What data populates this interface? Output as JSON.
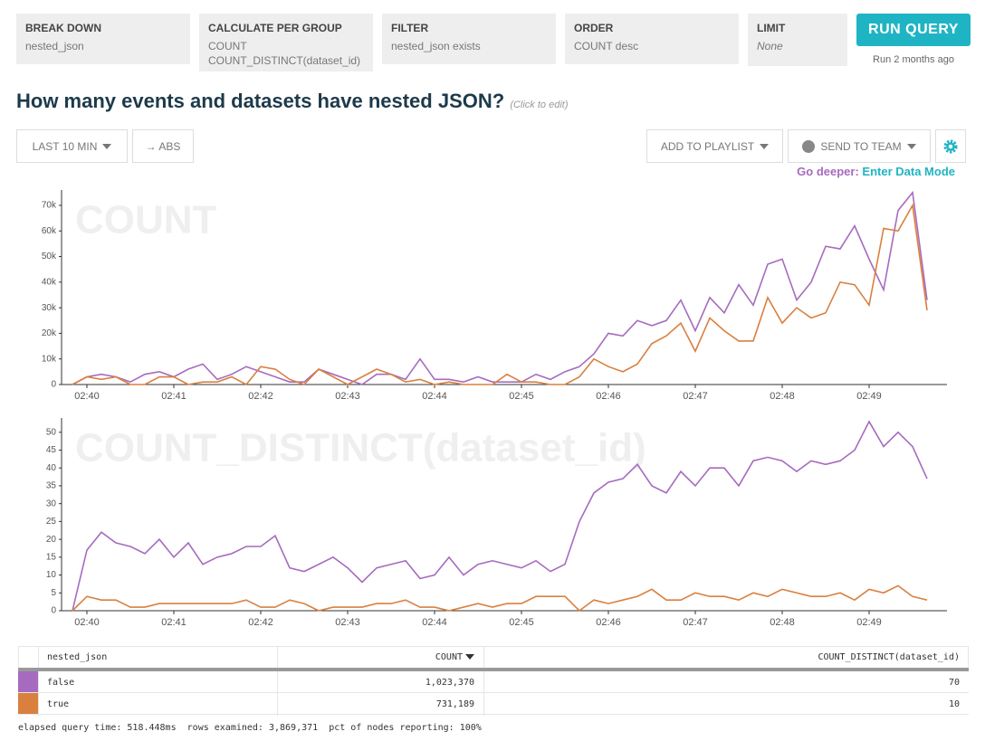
{
  "query": {
    "break_down": {
      "label": "BREAK DOWN",
      "value": "nested_json"
    },
    "calculate": {
      "label": "CALCULATE PER GROUP",
      "values": [
        "COUNT",
        "COUNT_DISTINCT(dataset_id)"
      ]
    },
    "filter": {
      "label": "FILTER",
      "value": "nested_json exists"
    },
    "order": {
      "label": "ORDER",
      "value": "COUNT desc"
    },
    "limit": {
      "label": "LIMIT",
      "value": "None"
    }
  },
  "run": {
    "button": "RUN QUERY",
    "status": "Run 2 months ago"
  },
  "header": {
    "title": "How many events and datasets have nested JSON?",
    "hint": "(Click to edit)"
  },
  "toolbar": {
    "time_range": "LAST 10 MIN",
    "mode": "→ ABS",
    "playlist": "ADD TO PLAYLIST",
    "send": "SEND TO TEAM"
  },
  "go_deeper": {
    "prefix": "Go deeper:",
    "link": "Enter Data Mode"
  },
  "chart_data": [
    {
      "type": "line",
      "title": "COUNT",
      "categories": [
        null,
        "02:40",
        null,
        null,
        null,
        null,
        null,
        "02:41",
        null,
        null,
        null,
        null,
        null,
        "02:42",
        null,
        null,
        null,
        null,
        null,
        "02:43",
        null,
        null,
        null,
        null,
        null,
        "02:44",
        null,
        null,
        null,
        null,
        null,
        "02:45",
        null,
        null,
        null,
        null,
        null,
        "02:46",
        null,
        null,
        null,
        null,
        null,
        "02:47",
        null,
        null,
        null,
        null,
        null,
        "02:48",
        null,
        null,
        null,
        null,
        null,
        "02:49",
        null,
        null,
        null,
        null
      ],
      "series": [
        {
          "color": "#a66bbe",
          "values": [
            0,
            3000,
            4000,
            3000,
            1000,
            4000,
            5000,
            3000,
            6000,
            8000,
            2000,
            4000,
            7000,
            5000,
            3000,
            1000,
            1000,
            6000,
            4000,
            2000,
            0,
            4000,
            4000,
            2000,
            10000,
            2000,
            2000,
            1000,
            3000,
            1000,
            1000,
            1000,
            4000,
            2000,
            5000,
            7000,
            12000,
            20000,
            19000,
            25000,
            23000,
            25000,
            33000,
            21000,
            34000,
            28000,
            39000,
            31000,
            47000,
            49000,
            33000,
            40000,
            54000,
            53000,
            62000,
            49000,
            37000,
            68000,
            75000,
            33000
          ]
        },
        {
          "color": "#d9803f",
          "values": [
            0,
            3000,
            2000,
            3000,
            0,
            0,
            3000,
            3000,
            0,
            1000,
            1000,
            3000,
            0,
            7000,
            6000,
            2000,
            0,
            6000,
            3000,
            0,
            3000,
            6000,
            4000,
            1000,
            2000,
            0,
            1000,
            0,
            0,
            0,
            4000,
            1000,
            1000,
            0,
            0,
            3000,
            10000,
            7000,
            5000,
            8000,
            16000,
            19000,
            24000,
            13000,
            26000,
            21000,
            17000,
            17000,
            34000,
            24000,
            30000,
            26000,
            28000,
            40000,
            39000,
            31000,
            61000,
            60000,
            70000,
            29000
          ]
        }
      ],
      "ylim": [
        0,
        76000
      ],
      "yticks": [
        0,
        {
          "value": 10000,
          "label": "10k"
        },
        {
          "value": 20000,
          "label": "20k"
        },
        {
          "value": 30000,
          "label": "30k"
        },
        {
          "value": 40000,
          "label": "40k"
        },
        {
          "value": 50000,
          "label": "50k"
        },
        {
          "value": 60000,
          "label": "60k"
        },
        {
          "value": 70000,
          "label": "70k"
        }
      ]
    },
    {
      "type": "line",
      "title": "COUNT_DISTINCT(dataset_id)",
      "categories": [
        null,
        "02:40",
        null,
        null,
        null,
        null,
        null,
        "02:41",
        null,
        null,
        null,
        null,
        null,
        "02:42",
        null,
        null,
        null,
        null,
        null,
        "02:43",
        null,
        null,
        null,
        null,
        null,
        "02:44",
        null,
        null,
        null,
        null,
        null,
        "02:45",
        null,
        null,
        null,
        null,
        null,
        "02:46",
        null,
        null,
        null,
        null,
        null,
        "02:47",
        null,
        null,
        null,
        null,
        null,
        "02:48",
        null,
        null,
        null,
        null,
        null,
        "02:49",
        null,
        null,
        null,
        null
      ],
      "series": [
        {
          "color": "#a66bbe",
          "values": [
            0,
            17,
            22,
            19,
            18,
            16,
            20,
            15,
            19,
            13,
            15,
            16,
            18,
            18,
            21,
            12,
            11,
            13,
            15,
            12,
            8,
            12,
            13,
            14,
            9,
            10,
            15,
            10,
            13,
            14,
            13,
            12,
            14,
            11,
            13,
            25,
            33,
            36,
            37,
            41,
            35,
            33,
            39,
            35,
            40,
            40,
            35,
            42,
            43,
            42,
            39,
            42,
            41,
            42,
            45,
            53,
            46,
            50,
            46,
            37
          ]
        },
        {
          "color": "#d9803f",
          "values": [
            0,
            4,
            3,
            3,
            1,
            1,
            2,
            2,
            2,
            2,
            2,
            2,
            3,
            1,
            1,
            3,
            2,
            0,
            1,
            1,
            1,
            2,
            2,
            3,
            1,
            1,
            0,
            1,
            2,
            1,
            2,
            2,
            4,
            4,
            4,
            0,
            3,
            2,
            3,
            4,
            6,
            3,
            3,
            5,
            4,
            4,
            3,
            5,
            4,
            6,
            5,
            4,
            4,
            5,
            3,
            6,
            5,
            7,
            4,
            3
          ]
        }
      ],
      "ylim": [
        0,
        54
      ],
      "yticks": [
        0,
        5,
        10,
        15,
        20,
        25,
        30,
        35,
        40,
        45,
        50
      ]
    }
  ],
  "table": {
    "headers": [
      "nested_json",
      "COUNT",
      "COUNT_DISTINCT(dataset_id)"
    ],
    "rows": [
      [
        "false",
        "1,023,370",
        "70"
      ],
      [
        "true",
        "731,189",
        "10"
      ]
    ]
  },
  "footer": [
    "elapsed query time: 518.448ms",
    "rows examined: 3,869,371",
    "pct of nodes reporting: 100%"
  ]
}
